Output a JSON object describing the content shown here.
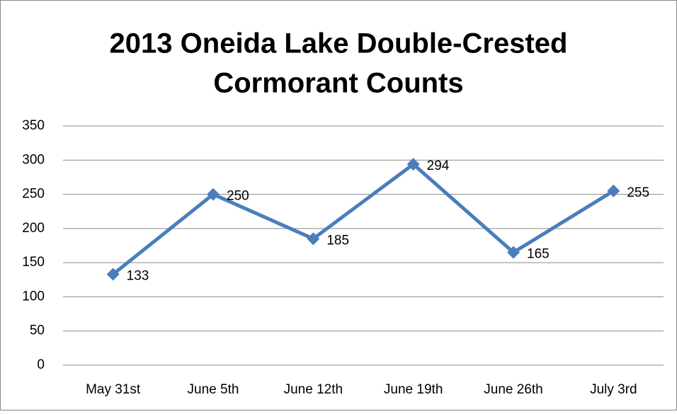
{
  "chart_data": {
    "type": "line",
    "title": [
      "2013 Oneida Lake Double-Crested",
      "Cormorant Counts"
    ],
    "categories": [
      "May 31st",
      "June 5th",
      "June 12th",
      "June 19th",
      "June 26th",
      "July 3rd"
    ],
    "series": [
      {
        "color": "#4a7ebb",
        "values": [
          133,
          250,
          185,
          294,
          165,
          255
        ]
      }
    ],
    "ylim": [
      0,
      350
    ],
    "yticks": [
      0,
      50,
      100,
      150,
      200,
      250,
      300,
      350
    ],
    "grid": true
  }
}
